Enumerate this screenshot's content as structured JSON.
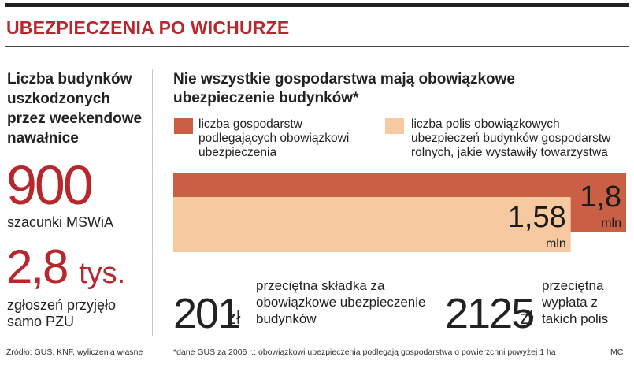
{
  "title": "UBEZPIECZENIA PO WICHURZE",
  "left": {
    "heading": "Liczba budynków uszkodzonych przez weekendowe nawałnice",
    "stat1_value": "900",
    "stat1_caption": "szacunki MSWiA",
    "stat2_value": "2,8",
    "stat2_unit": "tys.",
    "stat2_caption": "zgłoszeń przyjęło samo PZU"
  },
  "chart_title": "Nie wszystkie gospodarstwa mają obowiązkowe ubezpieczenie budynków*",
  "chart_data": {
    "type": "bar",
    "orientation": "horizontal",
    "legend_position": "top",
    "series": [
      {
        "name": "liczba gospodarstw podlegających obowiązkowi ubezpieczenia",
        "value": 1.8,
        "value_label": "1,8",
        "unit": "mln",
        "color": "#c95f45"
      },
      {
        "name": "liczba polis obowiązkowych ubezpieczeń budynków gospodarstw rolnych, jakie wystawiły towarzystwa",
        "value": 1.58,
        "value_label": "1,58",
        "unit": "mln",
        "color": "#f7c9a1"
      }
    ],
    "xlim": [
      0,
      1.8
    ],
    "grid": false
  },
  "stats": {
    "premium_value": "201",
    "premium_unit": "zł",
    "premium_caption": "przeciętna składka za obowiązkowe ubezpieczenie budynków",
    "payout_value": "2125",
    "payout_unit": "zł",
    "payout_caption": "przeciętna wypłata z takich polis"
  },
  "footer": {
    "source": "Źródło: GUS, KNF, wyliczenia własne",
    "note": "*dane GUS za 2006 r.; obowiązkowi ubezpieczenia podlegają gospodarstwa o powierzchni powyżej 1 ha",
    "author": "MC"
  }
}
